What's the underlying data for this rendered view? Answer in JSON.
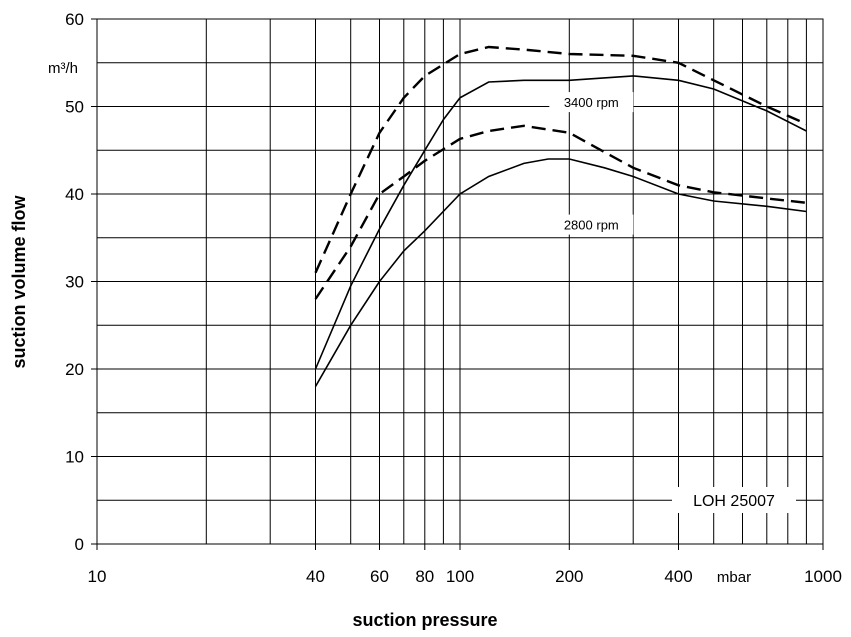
{
  "chart_data": {
    "type": "line",
    "xscale": "log",
    "xlim": [
      10,
      1000
    ],
    "ylim": [
      0,
      60
    ],
    "grid": true,
    "xlabel": "suction pressure",
    "ylabel": "suction volume flow",
    "x_unit": "mbar",
    "y_unit": "m³/h",
    "model_label": "LOH 25007",
    "x_ticks": [
      10,
      40,
      60,
      80,
      100,
      200,
      400,
      1000
    ],
    "x_tick_labels": [
      "10",
      "40",
      "60",
      "80",
      "100",
      "200",
      "400",
      "1000"
    ],
    "y_ticks": [
      0,
      10,
      20,
      30,
      40,
      50,
      60
    ],
    "y_tick_labels": [
      "0",
      "10",
      "20",
      "30",
      "40",
      "50",
      "60"
    ],
    "annotations": [
      {
        "text": "3400 rpm",
        "x": 230,
        "y": 50.5
      },
      {
        "text": "2800 rpm",
        "x": 230,
        "y": 36.5
      }
    ],
    "series": [
      {
        "style": "dashed",
        "x": [
          40,
          50,
          60,
          70,
          80,
          100,
          120,
          150,
          200,
          300,
          400,
          500,
          700,
          900
        ],
        "y": [
          31,
          40,
          47,
          51,
          53.5,
          56,
          56.8,
          56.5,
          56,
          55.8,
          55,
          53,
          50,
          48
        ]
      },
      {
        "style": "solid",
        "x": [
          40,
          50,
          60,
          70,
          80,
          90,
          100,
          120,
          150,
          200,
          300,
          400,
          500,
          700,
          900
        ],
        "y": [
          20,
          29.5,
          36,
          41,
          45,
          48.5,
          51,
          52.8,
          53,
          53,
          53.5,
          53,
          52,
          49.5,
          47.2
        ]
      },
      {
        "style": "dashed",
        "x": [
          40,
          50,
          60,
          70,
          80,
          100,
          120,
          150,
          200,
          300,
          400,
          500,
          700,
          900
        ],
        "y": [
          28,
          34,
          40,
          42,
          43.8,
          46.3,
          47.2,
          47.8,
          47,
          43,
          41,
          40.2,
          39.5,
          39
        ]
      },
      {
        "style": "solid",
        "x": [
          40,
          50,
          60,
          70,
          80,
          100,
          120,
          150,
          175,
          200,
          250,
          300,
          400,
          500,
          700,
          900
        ],
        "y": [
          18,
          25,
          30,
          33.5,
          35.8,
          40,
          42,
          43.5,
          44,
          44,
          43,
          42,
          40,
          39.2,
          38.6,
          38
        ]
      }
    ]
  }
}
